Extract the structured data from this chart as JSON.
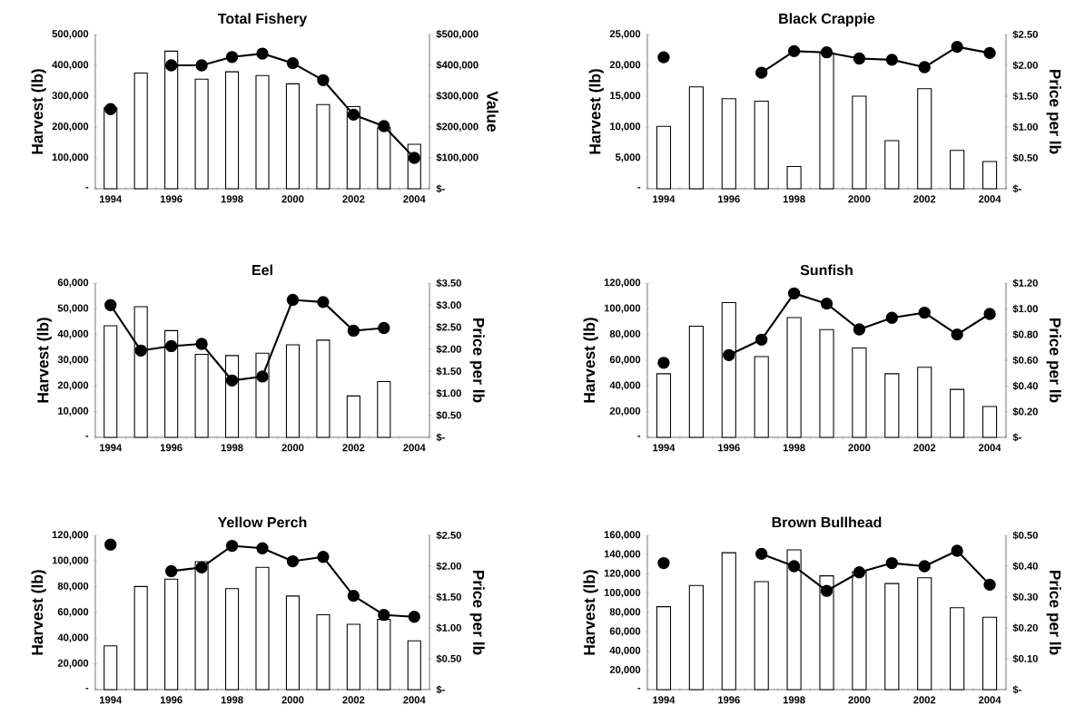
{
  "chart_data": [
    {
      "type": "bar",
      "title": "Total Fishery",
      "ylabel": "Harvest (lb)",
      "y2label": "Value",
      "grid": false,
      "marker": "circle",
      "line_style": "solid",
      "categories": [
        "1994",
        null,
        "1996",
        null,
        "1998",
        null,
        "2000",
        null,
        "2002",
        null,
        "2004"
      ],
      "ylim": [
        0,
        500000
      ],
      "yticks": [
        {
          "value": 0,
          "label": "-"
        },
        {
          "value": 100000,
          "label": "100,000"
        },
        {
          "value": 200000,
          "label": "200,000"
        },
        {
          "value": 300000,
          "label": "300,000"
        },
        {
          "value": 400000,
          "label": "400,000"
        },
        {
          "value": 500000,
          "label": "500,000"
        }
      ],
      "y2lim": [
        0,
        500000
      ],
      "y2ticks": [
        {
          "value": 0,
          "label": "$-"
        },
        {
          "value": 100000,
          "label": "$100,000"
        },
        {
          "value": 200000,
          "label": "$200,000"
        },
        {
          "value": 300000,
          "label": "$300,000"
        },
        {
          "value": 400000,
          "label": "$400,000"
        },
        {
          "value": 500000,
          "label": "$500,000"
        }
      ],
      "series": [
        {
          "color": "#ffffff",
          "values": [
            262000,
            375000,
            446000,
            355000,
            379000,
            367000,
            340000,
            273000,
            266000,
            198000,
            144000
          ]
        },
        {
          "type": "line",
          "axis": "y2",
          "color": "#000000",
          "values": [
            258000,
            null,
            400000,
            400000,
            427000,
            438000,
            407000,
            352000,
            240000,
            203000,
            100000
          ]
        }
      ]
    },
    {
      "type": "bar",
      "title": "Black Crappie",
      "ylabel": "Harvest (lb)",
      "y2label": "Price per lb",
      "grid": false,
      "marker": "circle",
      "line_style": "solid",
      "categories": [
        "1994",
        null,
        "1996",
        null,
        "1998",
        null,
        "2000",
        null,
        "2002",
        null,
        "2004"
      ],
      "ylim": [
        0,
        25000
      ],
      "yticks": [
        {
          "value": 0,
          "label": "-"
        },
        {
          "value": 5000,
          "label": "5,000"
        },
        {
          "value": 10000,
          "label": "10,000"
        },
        {
          "value": 15000,
          "label": "15,000"
        },
        {
          "value": 20000,
          "label": "20,000"
        },
        {
          "value": 25000,
          "label": "25,000"
        }
      ],
      "y2lim": [
        0,
        2.5
      ],
      "y2ticks": [
        {
          "value": 0,
          "label": "$-"
        },
        {
          "value": 0.5,
          "label": "$0.50"
        },
        {
          "value": 1.0,
          "label": "$1.00"
        },
        {
          "value": 1.5,
          "label": "$1.50"
        },
        {
          "value": 2.0,
          "label": "$2.00"
        },
        {
          "value": 2.5,
          "label": "$2.50"
        }
      ],
      "series": [
        {
          "color": "#ffffff",
          "values": [
            10100,
            16500,
            14600,
            14200,
            3600,
            22000,
            15000,
            7800,
            16200,
            6200,
            4400
          ]
        },
        {
          "type": "line",
          "axis": "y2",
          "color": "#000000",
          "values": [
            2.13,
            null,
            null,
            1.88,
            2.23,
            2.21,
            2.11,
            2.09,
            1.97,
            2.3,
            2.2
          ]
        }
      ]
    },
    {
      "type": "bar",
      "title": "Eel",
      "ylabel": "Harvest (lb)",
      "y2label": "Price per lb",
      "grid": false,
      "marker": "circle",
      "line_style": "solid",
      "categories": [
        "1994",
        null,
        "1996",
        null,
        "1998",
        null,
        "2000",
        null,
        "2002",
        null,
        "2004"
      ],
      "ylim": [
        0,
        60000
      ],
      "yticks": [
        {
          "value": 0,
          "label": "-"
        },
        {
          "value": 10000,
          "label": "10,000"
        },
        {
          "value": 20000,
          "label": "20,000"
        },
        {
          "value": 30000,
          "label": "30,000"
        },
        {
          "value": 40000,
          "label": "40,000"
        },
        {
          "value": 50000,
          "label": "50,000"
        },
        {
          "value": 60000,
          "label": "60,000"
        }
      ],
      "y2lim": [
        0,
        3.5
      ],
      "y2ticks": [
        {
          "value": 0,
          "label": "$-"
        },
        {
          "value": 0.5,
          "label": "$0.50"
        },
        {
          "value": 1.0,
          "label": "$1.00"
        },
        {
          "value": 1.5,
          "label": "$1.50"
        },
        {
          "value": 2.0,
          "label": "$2.00"
        },
        {
          "value": 2.5,
          "label": "$2.50"
        },
        {
          "value": 3.0,
          "label": "$3.00"
        },
        {
          "value": 3.5,
          "label": "$3.50"
        }
      ],
      "series": [
        {
          "color": "#ffffff",
          "values": [
            43400,
            50800,
            41500,
            32300,
            31800,
            32700,
            36000,
            37800,
            16100,
            21700,
            null
          ]
        },
        {
          "type": "line",
          "axis": "y2",
          "color": "#000000",
          "values": [
            3.0,
            1.97,
            2.07,
            2.12,
            1.29,
            1.38,
            3.12,
            3.07,
            2.42,
            2.48,
            null
          ]
        }
      ]
    },
    {
      "type": "bar",
      "title": "Sunfish",
      "ylabel": "Harvest (lb)",
      "y2label": "Price per lb",
      "grid": false,
      "marker": "circle",
      "line_style": "solid",
      "categories": [
        "1994",
        null,
        "1996",
        null,
        "1998",
        null,
        "2000",
        null,
        "2002",
        null,
        "2004"
      ],
      "ylim": [
        0,
        120000
      ],
      "yticks": [
        {
          "value": 0,
          "label": "-"
        },
        {
          "value": 20000,
          "label": "20,000"
        },
        {
          "value": 40000,
          "label": "40,000"
        },
        {
          "value": 60000,
          "label": "60,000"
        },
        {
          "value": 80000,
          "label": "80,000"
        },
        {
          "value": 100000,
          "label": "100,000"
        },
        {
          "value": 120000,
          "label": "120,000"
        }
      ],
      "y2lim": [
        0,
        1.2
      ],
      "y2ticks": [
        {
          "value": 0,
          "label": "$-"
        },
        {
          "value": 0.2,
          "label": "$0.20"
        },
        {
          "value": 0.4,
          "label": "$0.40"
        },
        {
          "value": 0.6,
          "label": "$0.60"
        },
        {
          "value": 0.8,
          "label": "$0.80"
        },
        {
          "value": 1.0,
          "label": "$1.00"
        },
        {
          "value": 1.2,
          "label": "$1.20"
        }
      ],
      "series": [
        {
          "color": "#ffffff",
          "values": [
            49500,
            86500,
            104800,
            62800,
            93200,
            83800,
            69500,
            49500,
            54500,
            37300,
            24000
          ]
        },
        {
          "type": "line",
          "axis": "y2",
          "color": "#000000",
          "values": [
            0.58,
            null,
            0.64,
            0.76,
            1.12,
            1.04,
            0.84,
            0.93,
            0.97,
            0.8,
            0.96
          ]
        }
      ]
    },
    {
      "type": "bar",
      "title": "Yellow Perch",
      "ylabel": "Harvest (lb)",
      "y2label": "Price per lb",
      "grid": false,
      "marker": "circle",
      "line_style": "solid",
      "categories": [
        "1994",
        null,
        "1996",
        null,
        "1998",
        null,
        "2000",
        null,
        "2002",
        null,
        "2004"
      ],
      "ylim": [
        0,
        120000
      ],
      "yticks": [
        {
          "value": 0,
          "label": "-"
        },
        {
          "value": 20000,
          "label": "20,000"
        },
        {
          "value": 40000,
          "label": "40,000"
        },
        {
          "value": 60000,
          "label": "60,000"
        },
        {
          "value": 80000,
          "label": "80,000"
        },
        {
          "value": 100000,
          "label": "100,000"
        },
        {
          "value": 120000,
          "label": "120,000"
        }
      ],
      "y2lim": [
        0,
        2.5
      ],
      "y2ticks": [
        {
          "value": 0,
          "label": "$-"
        },
        {
          "value": 0.5,
          "label": "$0.50"
        },
        {
          "value": 1.0,
          "label": "$1.00"
        },
        {
          "value": 1.5,
          "label": "$1.50"
        },
        {
          "value": 2.0,
          "label": "$2.00"
        },
        {
          "value": 2.5,
          "label": "$2.50"
        }
      ],
      "series": [
        {
          "color": "#ffffff",
          "values": [
            34000,
            80200,
            85900,
            99500,
            78500,
            95100,
            72800,
            58200,
            50800,
            54600,
            37900
          ]
        },
        {
          "type": "line",
          "axis": "y2",
          "color": "#000000",
          "values": [
            2.35,
            null,
            1.92,
            1.98,
            2.33,
            2.29,
            2.08,
            2.15,
            1.52,
            1.21,
            1.18
          ]
        }
      ]
    },
    {
      "type": "bar",
      "title": "Brown Bullhead",
      "ylabel": "Harvest (lb)",
      "y2label": "Price per lb",
      "grid": false,
      "marker": "circle",
      "line_style": "solid",
      "categories": [
        "1994",
        null,
        "1996",
        null,
        "1998",
        null,
        "2000",
        null,
        "2002",
        null,
        "2004"
      ],
      "ylim": [
        0,
        160000
      ],
      "yticks": [
        {
          "value": 0,
          "label": "-"
        },
        {
          "value": 20000,
          "label": "20,000"
        },
        {
          "value": 40000,
          "label": "40,000"
        },
        {
          "value": 60000,
          "label": "60,000"
        },
        {
          "value": 80000,
          "label": "80,000"
        },
        {
          "value": 100000,
          "label": "100,000"
        },
        {
          "value": 120000,
          "label": "120,000"
        },
        {
          "value": 140000,
          "label": "140,000"
        },
        {
          "value": 160000,
          "label": "160,000"
        }
      ],
      "y2lim": [
        0,
        0.5
      ],
      "y2ticks": [
        {
          "value": 0,
          "label": "$-"
        },
        {
          "value": 0.1,
          "label": "$0.10"
        },
        {
          "value": 0.2,
          "label": "$0.20"
        },
        {
          "value": 0.3,
          "label": "$0.30"
        },
        {
          "value": 0.4,
          "label": "$0.40"
        },
        {
          "value": 0.5,
          "label": "$0.50"
        }
      ],
      "series": [
        {
          "color": "#ffffff",
          "values": [
            86000,
            108000,
            142000,
            112000,
            145000,
            118000,
            122000,
            110000,
            116000,
            85000,
            75000
          ]
        },
        {
          "type": "line",
          "axis": "y2",
          "color": "#000000",
          "values": [
            0.41,
            null,
            null,
            0.44,
            0.4,
            0.32,
            0.38,
            0.41,
            0.4,
            0.45,
            0.34
          ]
        }
      ]
    }
  ]
}
